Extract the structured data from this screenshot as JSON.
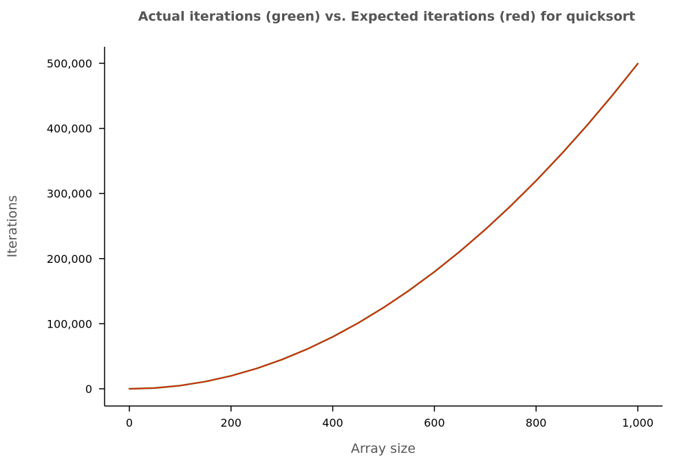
{
  "chart_data": {
    "type": "line",
    "title": "Actual iterations (green) vs. Expected iterations (red) for quicksort",
    "xlabel": "Array size",
    "ylabel": "Iterations",
    "xlim": [
      0,
      1000
    ],
    "ylim": [
      0,
      500000
    ],
    "x_ticks": [
      0,
      200,
      400,
      600,
      800,
      1000
    ],
    "x_tick_labels": [
      "0",
      "200",
      "400",
      "600",
      "800",
      "1,000"
    ],
    "y_ticks": [
      0,
      100000,
      200000,
      300000,
      400000,
      500000
    ],
    "y_tick_labels": [
      "0",
      "100,000",
      "200,000",
      "300,000",
      "400,000",
      "500,000"
    ],
    "grid": false,
    "series": [
      {
        "color": "#2ca02c",
        "x": [
          0,
          50,
          100,
          150,
          200,
          250,
          300,
          350,
          400,
          450,
          500,
          550,
          600,
          650,
          700,
          750,
          800,
          850,
          900,
          950,
          1000
        ],
        "values": [
          0,
          1225,
          4950,
          11175,
          19900,
          31125,
          44850,
          61075,
          79800,
          101025,
          124750,
          150975,
          179700,
          210925,
          244650,
          280875,
          319600,
          360825,
          404550,
          450775,
          499500
        ]
      },
      {
        "color": "#d62a0a",
        "x": [
          0,
          50,
          100,
          150,
          200,
          250,
          300,
          350,
          400,
          450,
          500,
          550,
          600,
          650,
          700,
          750,
          800,
          850,
          900,
          950,
          1000
        ],
        "values": [
          0,
          1225,
          4950,
          11175,
          19900,
          31125,
          44850,
          61075,
          79800,
          101025,
          124750,
          150975,
          179700,
          210925,
          244650,
          280875,
          319600,
          360825,
          404550,
          450775,
          499500
        ]
      }
    ]
  }
}
